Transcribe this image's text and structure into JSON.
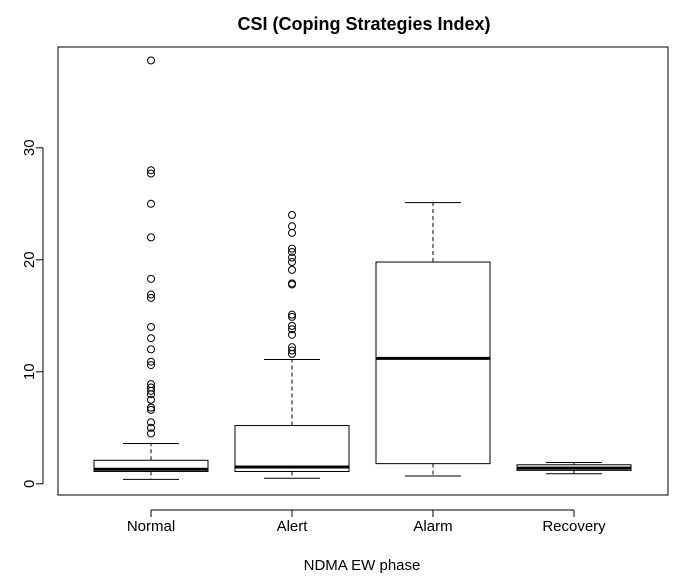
{
  "chart_data": {
    "type": "boxplot",
    "title": "CSI  (Coping Strategies Index)",
    "xlabel": "NDMA EW phase",
    "ylabel": "",
    "categories": [
      "Normal",
      "Alert",
      "Alarm",
      "Recovery"
    ],
    "ylim": [
      -1,
      39
    ],
    "yticks": [
      0,
      10,
      20,
      30
    ],
    "grid": false,
    "boxes": [
      {
        "category": "Normal",
        "whisker_low": 0.4,
        "q1": 1.1,
        "median": 1.3,
        "q3": 2.1,
        "whisker_high": 3.6,
        "outliers": [
          4.5,
          5.0,
          5.5,
          6.6,
          6.8,
          7.5,
          8.0,
          8.3,
          8.6,
          8.9,
          10.6,
          10.9,
          12.0,
          13.0,
          14.0,
          16.6,
          16.9,
          18.3,
          22.0,
          25.0,
          27.7,
          28.0,
          37.8
        ]
      },
      {
        "category": "Alert",
        "whisker_low": 0.5,
        "q1": 1.1,
        "median": 1.5,
        "q3": 5.2,
        "whisker_high": 11.1,
        "outliers": [
          11.6,
          11.9,
          12.2,
          13.3,
          13.8,
          14.1,
          14.9,
          15.1,
          17.8,
          17.9,
          19.1,
          19.8,
          20.2,
          20.7,
          21.0,
          22.4,
          23.0,
          24.0
        ]
      },
      {
        "category": "Alarm",
        "whisker_low": 0.7,
        "q1": 1.8,
        "median": 11.2,
        "q3": 19.8,
        "whisker_high": 25.1,
        "outliers": []
      },
      {
        "category": "Recovery",
        "whisker_low": 0.9,
        "q1": 1.2,
        "median": 1.4,
        "q3": 1.7,
        "whisker_high": 1.9,
        "outliers": []
      }
    ]
  }
}
